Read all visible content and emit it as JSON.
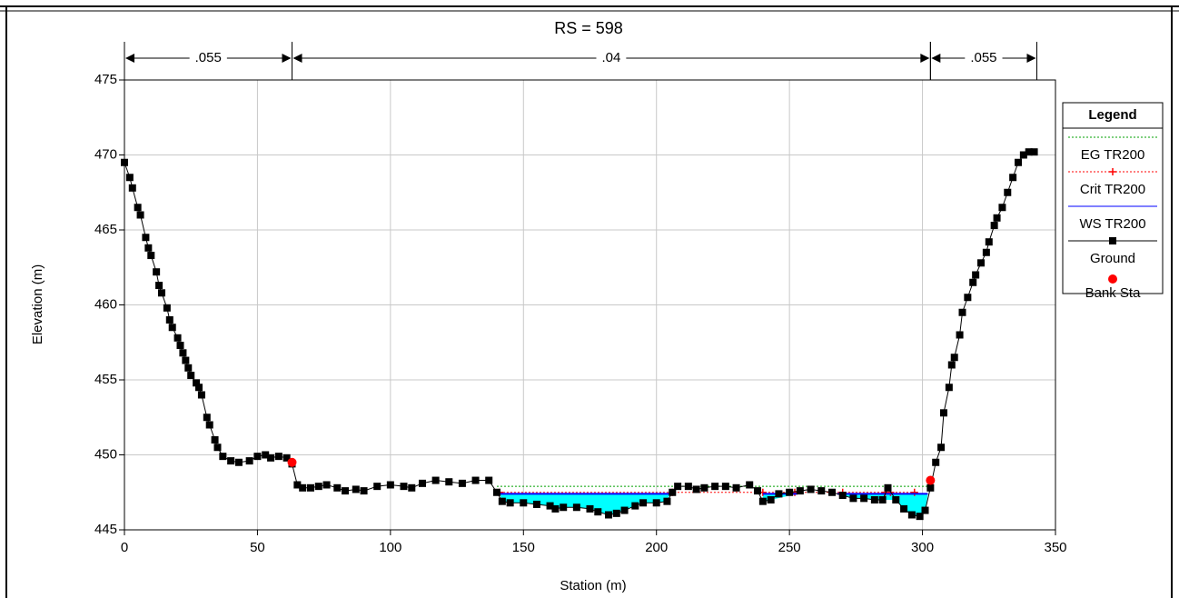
{
  "chart_data": {
    "type": "cross-section",
    "title": "RS = 598",
    "x_label": "Station (m)",
    "y_label": "Elevation (m)",
    "xlim": [
      0,
      350
    ],
    "xticks": [
      0,
      50,
      100,
      150,
      200,
      250,
      300,
      350
    ],
    "ylim": [
      445,
      475
    ],
    "yticks": [
      445,
      450,
      455,
      460,
      465,
      470,
      475
    ],
    "grid": true,
    "legend_title": "Legend",
    "legend_position": "right",
    "roughness": [
      {
        "label": ".055",
        "from": 0,
        "to": 63
      },
      {
        "label": ".04",
        "from": 63,
        "to": 303
      },
      {
        "label": ".055",
        "from": 303,
        "to": 343
      }
    ],
    "series": [
      {
        "name": "EG TR200",
        "color": "#00a000",
        "style": "dotted",
        "x": [
          140,
          303
        ],
        "values": [
          447.9,
          447.9
        ]
      },
      {
        "name": "Crit TR200",
        "color": "#ff0000",
        "style": "crit",
        "x": [
          141,
          206,
          240,
          252,
          270,
          286,
          288,
          297
        ],
        "values": [
          447.5,
          447.5,
          447.5,
          447.5,
          447.5,
          447.5,
          447.5,
          447.5
        ]
      },
      {
        "name": "WS TR200",
        "color": "#0000ff",
        "style": "water",
        "fill": "#00ffff",
        "x": [
          141,
          205,
          206,
          240,
          253,
          254,
          268,
          302
        ],
        "values": [
          447.4,
          447.4,
          null,
          447.4,
          447.4,
          null,
          447.4,
          447.4
        ]
      },
      {
        "name": "Ground",
        "color": "#000000",
        "style": "ground",
        "x": [
          0,
          2,
          3,
          5,
          6,
          8,
          9,
          10,
          12,
          13,
          14,
          16,
          17,
          18,
          20,
          21,
          22,
          23,
          24,
          25,
          27,
          28,
          29,
          31,
          32,
          34,
          35,
          37,
          40,
          43,
          47,
          50,
          53,
          55,
          58,
          61,
          63,
          65,
          67,
          70,
          73,
          76,
          80,
          83,
          87,
          90,
          95,
          100,
          105,
          108,
          112,
          117,
          122,
          127,
          132,
          137,
          140,
          142,
          145,
          150,
          155,
          160,
          162,
          165,
          170,
          175,
          178,
          182,
          185,
          188,
          192,
          195,
          200,
          204,
          206,
          208,
          212,
          215,
          218,
          222,
          226,
          230,
          235,
          238,
          240,
          243,
          246,
          250,
          254,
          258,
          262,
          266,
          270,
          274,
          278,
          282,
          285,
          287,
          290,
          293,
          296,
          299,
          301,
          303,
          305,
          307,
          308,
          310,
          311,
          312,
          314,
          315,
          317,
          319,
          320,
          322,
          324,
          325,
          327,
          328,
          330,
          332,
          334,
          336,
          338,
          340,
          342
        ],
        "values": [
          469.5,
          468.5,
          467.8,
          466.5,
          466,
          464.5,
          463.8,
          463.3,
          462.2,
          461.3,
          460.8,
          459.8,
          459,
          458.5,
          457.8,
          457.3,
          456.8,
          456.3,
          455.8,
          455.3,
          454.8,
          454.5,
          454,
          452.5,
          452,
          451,
          450.5,
          449.9,
          449.6,
          449.5,
          449.6,
          449.9,
          450,
          449.8,
          449.9,
          449.8,
          449.4,
          448,
          447.8,
          447.8,
          447.9,
          448,
          447.8,
          447.6,
          447.7,
          447.6,
          447.9,
          448,
          447.9,
          447.8,
          448.1,
          448.3,
          448.2,
          448.1,
          448.3,
          448.3,
          447.5,
          446.9,
          446.8,
          446.8,
          446.7,
          446.6,
          446.4,
          446.5,
          446.5,
          446.4,
          446.2,
          446,
          446.1,
          446.3,
          446.6,
          446.8,
          446.8,
          446.9,
          447.5,
          447.9,
          447.9,
          447.7,
          447.8,
          447.9,
          447.9,
          447.8,
          448,
          447.6,
          446.9,
          447,
          447.4,
          447.5,
          447.6,
          447.7,
          447.6,
          447.5,
          447.3,
          447.1,
          447.1,
          447,
          447,
          447.8,
          447,
          446.4,
          446,
          445.9,
          446.3,
          447.8,
          449.5,
          450.5,
          452.8,
          454.5,
          456,
          456.5,
          458,
          459.5,
          460.5,
          461.5,
          462,
          462.8,
          463.5,
          464.2,
          465.3,
          465.8,
          466.5,
          467.5,
          468.5,
          469.5,
          470,
          470.2,
          470.2
        ]
      },
      {
        "name": "Bank Sta",
        "color": "#ff0000",
        "style": "bank",
        "x": [
          63,
          303
        ],
        "values": [
          449.5,
          448.3
        ]
      }
    ]
  }
}
